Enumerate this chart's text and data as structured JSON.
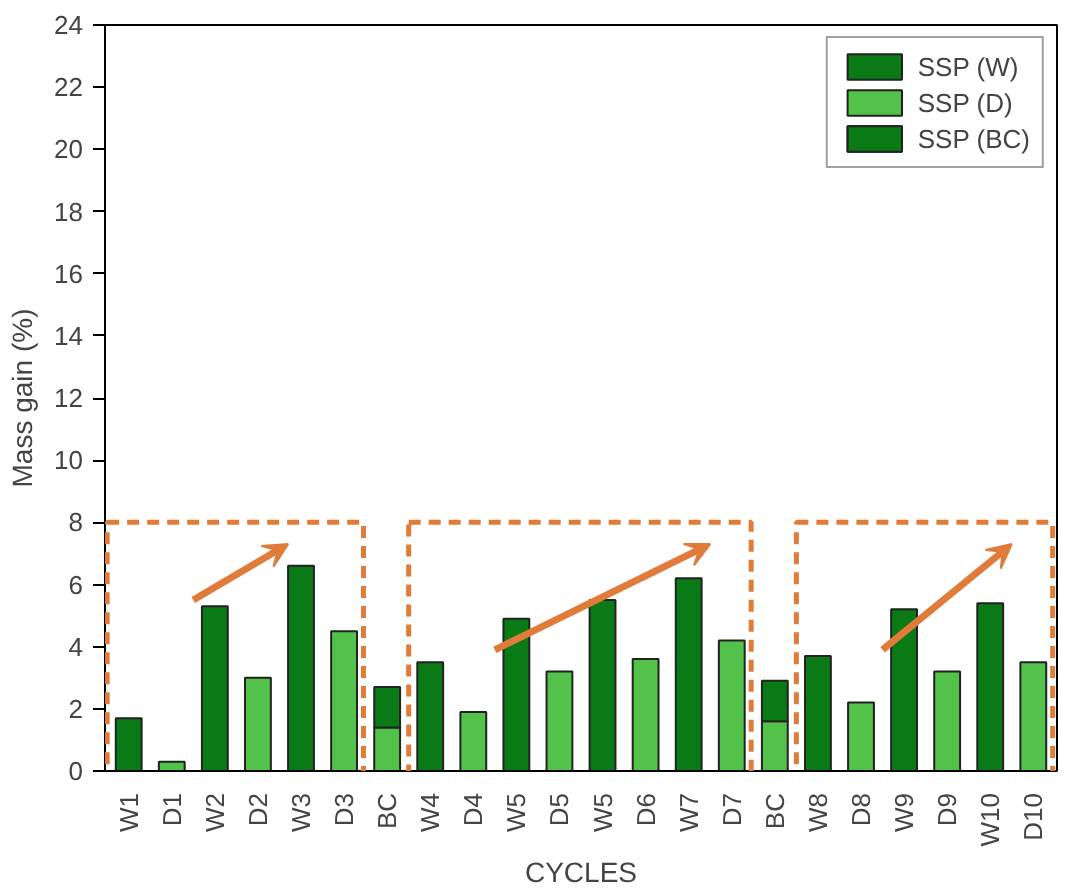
{
  "chart_data": {
    "type": "bar",
    "stacked": true,
    "xlabel": "CYCLES",
    "ylabel": "Mass gain (%)",
    "categories": [
      "W1",
      "D1",
      "W2",
      "D2",
      "W3",
      "D3",
      "BC",
      "W4",
      "D4",
      "W5",
      "D5",
      "W5",
      "D6",
      "W7",
      "D7",
      "BC",
      "W8",
      "D8",
      "W9",
      "D9",
      "W10",
      "D10"
    ],
    "series": [
      {
        "name": "SSP (W)",
        "color": "#0a7a16",
        "values": [
          1.7,
          null,
          5.3,
          null,
          6.6,
          null,
          null,
          3.5,
          null,
          4.9,
          null,
          5.5,
          null,
          6.2,
          null,
          null,
          3.7,
          null,
          5.2,
          null,
          5.4,
          null
        ]
      },
      {
        "name": "SSP (D)",
        "color": "#52c24a",
        "values": [
          null,
          0.3,
          null,
          3.0,
          null,
          4.5,
          null,
          null,
          1.9,
          null,
          3.2,
          null,
          3.6,
          null,
          4.2,
          null,
          null,
          2.2,
          null,
          3.2,
          null,
          3.5
        ]
      },
      {
        "name": "SSP (BC)",
        "color": "#52c24a",
        "values": [
          null,
          null,
          null,
          null,
          null,
          null,
          1.4,
          null,
          null,
          null,
          null,
          null,
          null,
          null,
          null,
          1.6,
          null,
          null,
          null,
          null,
          null,
          null
        ]
      },
      {
        "color": "#0a7a16",
        "values": [
          null,
          null,
          null,
          null,
          null,
          null,
          1.3,
          null,
          null,
          null,
          null,
          null,
          null,
          null,
          null,
          1.3,
          null,
          null,
          null,
          null,
          null,
          null
        ]
      }
    ],
    "ylim": [
      0,
      24
    ],
    "yticks": [
      0,
      2,
      4,
      6,
      8,
      10,
      12,
      14,
      16,
      18,
      20,
      22,
      24
    ],
    "grid": false,
    "legend": "top right"
  }
}
